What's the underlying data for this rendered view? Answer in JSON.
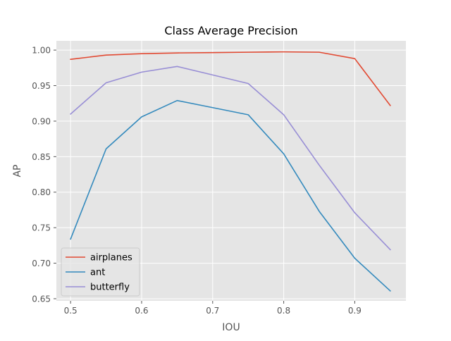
{
  "chart_data": {
    "type": "line",
    "title": "Class Average Precision",
    "xlabel": "IOU",
    "ylabel": "AP",
    "x": [
      0.5,
      0.55,
      0.6,
      0.65,
      0.7,
      0.75,
      0.8,
      0.85,
      0.9,
      0.95
    ],
    "xlim": [
      0.48,
      0.972
    ],
    "ylim": [
      0.647,
      1.013
    ],
    "xticks": [
      0.5,
      0.6,
      0.7,
      0.8,
      0.9
    ],
    "xtick_labels": [
      "0.5",
      "0.6",
      "0.7",
      "0.8",
      "0.9"
    ],
    "yticks": [
      0.65,
      0.7,
      0.75,
      0.8,
      0.85,
      0.9,
      0.95,
      1.0
    ],
    "ytick_labels": [
      "0.65",
      "0.70",
      "0.75",
      "0.80",
      "0.85",
      "0.90",
      "0.95",
      "1.00"
    ],
    "grid": true,
    "legend_position": "lower-left",
    "series": [
      {
        "name": "airplanes",
        "color": "#e24a33",
        "values": [
          0.987,
          0.993,
          0.995,
          0.996,
          0.9965,
          0.997,
          0.9975,
          0.997,
          0.988,
          0.922
        ]
      },
      {
        "name": "ant",
        "color": "#348abd",
        "values": [
          0.734,
          0.861,
          0.906,
          0.929,
          0.919,
          0.909,
          0.854,
          0.773,
          0.707,
          0.661
        ]
      },
      {
        "name": "butterfly",
        "color": "#988ed5",
        "values": [
          0.91,
          0.954,
          0.969,
          0.977,
          0.965,
          0.953,
          0.909,
          0.838,
          0.771,
          0.719
        ]
      }
    ]
  }
}
